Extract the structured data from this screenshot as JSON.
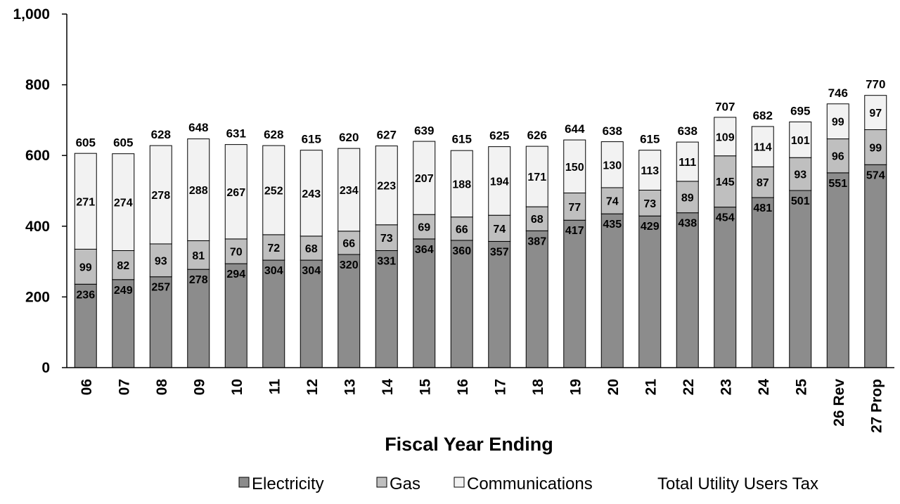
{
  "chart_data": {
    "type": "bar",
    "stacked": true,
    "title": "",
    "xlabel": "Fiscal Year Ending",
    "ylabel": "",
    "ylim": [
      0,
      1000
    ],
    "yticks": [
      0,
      200,
      400,
      600,
      800,
      1000
    ],
    "ytick_labels": [
      "0",
      "200",
      "400",
      "600",
      "800",
      "1,000"
    ],
    "categories": [
      "06",
      "07",
      "08",
      "09",
      "10",
      "11",
      "12",
      "13",
      "14",
      "15",
      "16",
      "17",
      "18",
      "19",
      "20",
      "21",
      "22",
      "23",
      "24",
      "25",
      "26 Rev",
      "27 Prop"
    ],
    "series": [
      {
        "name": "Electricity",
        "color": "#8c8c8c",
        "values": [
          236,
          249,
          257,
          278,
          294,
          304,
          304,
          320,
          331,
          364,
          360,
          357,
          387,
          417,
          435,
          429,
          438,
          454,
          481,
          501,
          551,
          574
        ]
      },
      {
        "name": "Gas",
        "color": "#bfbfbf",
        "values": [
          99,
          82,
          93,
          81,
          70,
          72,
          68,
          66,
          73,
          69,
          66,
          74,
          68,
          77,
          74,
          73,
          89,
          145,
          87,
          93,
          96,
          99
        ]
      },
      {
        "name": "Communications",
        "color": "#f2f2f2",
        "values": [
          271,
          274,
          278,
          288,
          267,
          252,
          243,
          234,
          223,
          207,
          188,
          194,
          171,
          150,
          130,
          113,
          111,
          109,
          114,
          101,
          99,
          97
        ]
      }
    ],
    "totals": [
      605,
      605,
      628,
      648,
      631,
      628,
      615,
      620,
      627,
      639,
      615,
      625,
      626,
      644,
      638,
      615,
      638,
      707,
      682,
      695,
      746,
      770
    ],
    "totals_name": "Total Utility Users Tax",
    "legend_position": "bottom-right",
    "grid": false
  }
}
